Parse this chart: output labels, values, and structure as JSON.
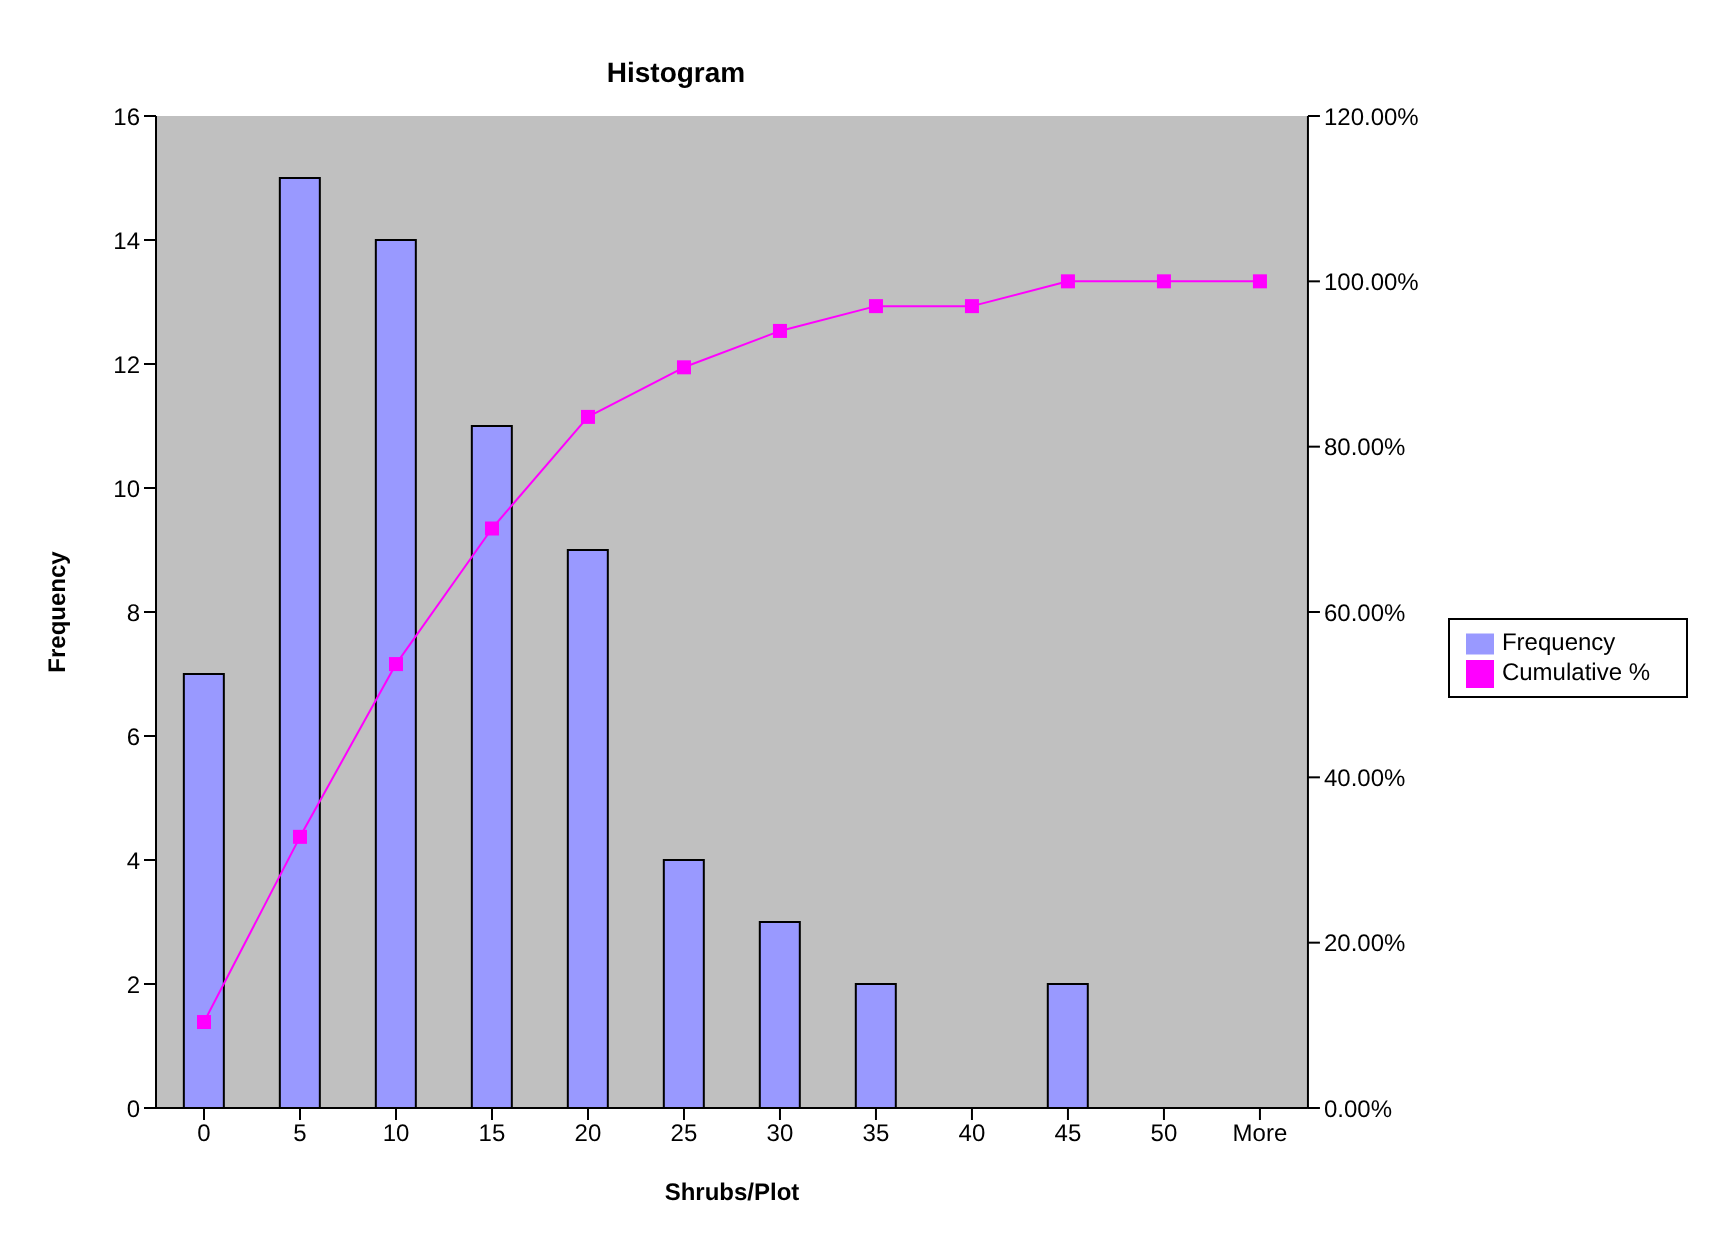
{
  "chart_data": {
    "type": "bar",
    "title": "Histogram",
    "xlabel": "Shrubs/Plot",
    "ylabel": "Frequency",
    "categories": [
      "0",
      "5",
      "10",
      "15",
      "20",
      "25",
      "30",
      "35",
      "40",
      "45",
      "50",
      "More"
    ],
    "series": [
      {
        "name": "Frequency",
        "color": "#9999ff",
        "values": [
          7,
          15,
          14,
          11,
          9,
          4,
          3,
          2,
          0,
          2,
          0,
          0
        ]
      },
      {
        "name": "Cumulative %",
        "type": "line",
        "axis": "y2",
        "color": "#ff00ff",
        "values": [
          10.4,
          32.8,
          53.7,
          70.1,
          83.6,
          89.6,
          94,
          97,
          97,
          100,
          100,
          100
        ]
      }
    ],
    "ylim": [
      0,
      16
    ],
    "yticks": [
      0,
      2,
      4,
      6,
      8,
      10,
      12,
      14,
      16
    ],
    "y2lim": [
      0,
      120
    ],
    "y2ticks": [
      {
        "value": 0,
        "label": "0.00%"
      },
      {
        "value": 20,
        "label": "20.00%"
      },
      {
        "value": 40,
        "label": "40.00%"
      },
      {
        "value": 60,
        "label": "60.00%"
      },
      {
        "value": 80,
        "label": "80.00%"
      },
      {
        "value": 100,
        "label": "100.00%"
      },
      {
        "value": 120,
        "label": "120.00%"
      }
    ],
    "legend": "right",
    "marker": "square",
    "line_style": "solid"
  }
}
